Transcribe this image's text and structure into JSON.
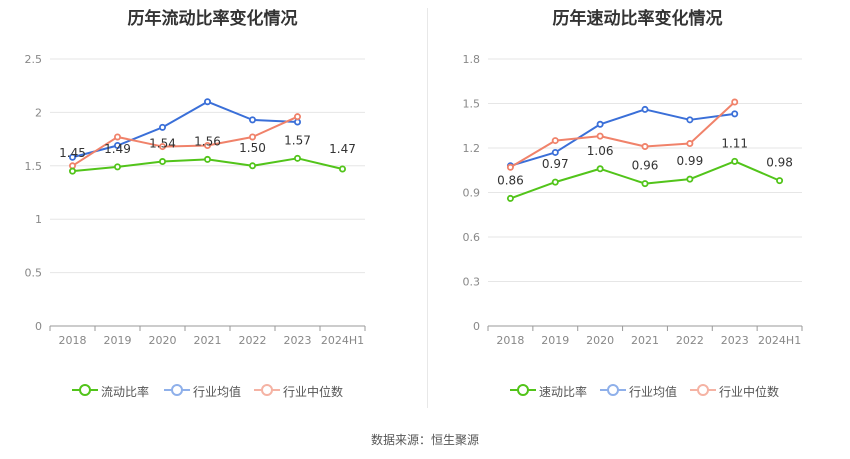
{
  "chart_data": [
    {
      "type": "line",
      "title": "历年流动比率变化情况",
      "categories": [
        "2018",
        "2019",
        "2020",
        "2021",
        "2022",
        "2023",
        "2024H1"
      ],
      "ylim": [
        0,
        2.5
      ],
      "yticks": [
        "0",
        "0.5",
        "1",
        "1.5",
        "2",
        "2.5"
      ],
      "series": [
        {
          "name": "流动比率",
          "color": "#52c41a",
          "labeled": true,
          "values": [
            1.45,
            1.49,
            1.54,
            1.56,
            1.5,
            1.57,
            1.47
          ],
          "labels": [
            "1.45",
            "1.49",
            "1.54",
            "1.56",
            "1.50",
            "1.57",
            "1.47"
          ]
        },
        {
          "name": "行业均值",
          "color": "#3a6fd8",
          "labeled": false,
          "values": [
            1.58,
            1.69,
            1.86,
            2.1,
            1.93,
            1.91,
            null
          ]
        },
        {
          "name": "行业中位数",
          "color": "#f0826a",
          "labeled": false,
          "values": [
            1.5,
            1.77,
            1.68,
            1.69,
            1.77,
            1.96,
            null
          ]
        }
      ]
    },
    {
      "type": "line",
      "title": "历年速动比率变化情况",
      "categories": [
        "2018",
        "2019",
        "2020",
        "2021",
        "2022",
        "2023",
        "2024H1"
      ],
      "ylim": [
        0,
        1.8
      ],
      "yticks": [
        "0",
        "0.3",
        "0.6",
        "0.9",
        "1.2",
        "1.5",
        "1.8"
      ],
      "series": [
        {
          "name": "速动比率",
          "color": "#52c41a",
          "labeled": true,
          "values": [
            0.86,
            0.97,
            1.06,
            0.96,
            0.99,
            1.11,
            0.98
          ],
          "labels": [
            "0.86",
            "0.97",
            "1.06",
            "0.96",
            "0.99",
            "1.11",
            "0.98"
          ]
        },
        {
          "name": "行业均值",
          "color": "#3a6fd8",
          "labeled": false,
          "values": [
            1.08,
            1.17,
            1.36,
            1.46,
            1.39,
            1.43,
            null
          ]
        },
        {
          "name": "行业中位数",
          "color": "#f0826a",
          "labeled": false,
          "values": [
            1.07,
            1.25,
            1.28,
            1.21,
            1.23,
            1.51,
            null
          ]
        }
      ]
    }
  ],
  "source": "数据来源：恒生聚源"
}
